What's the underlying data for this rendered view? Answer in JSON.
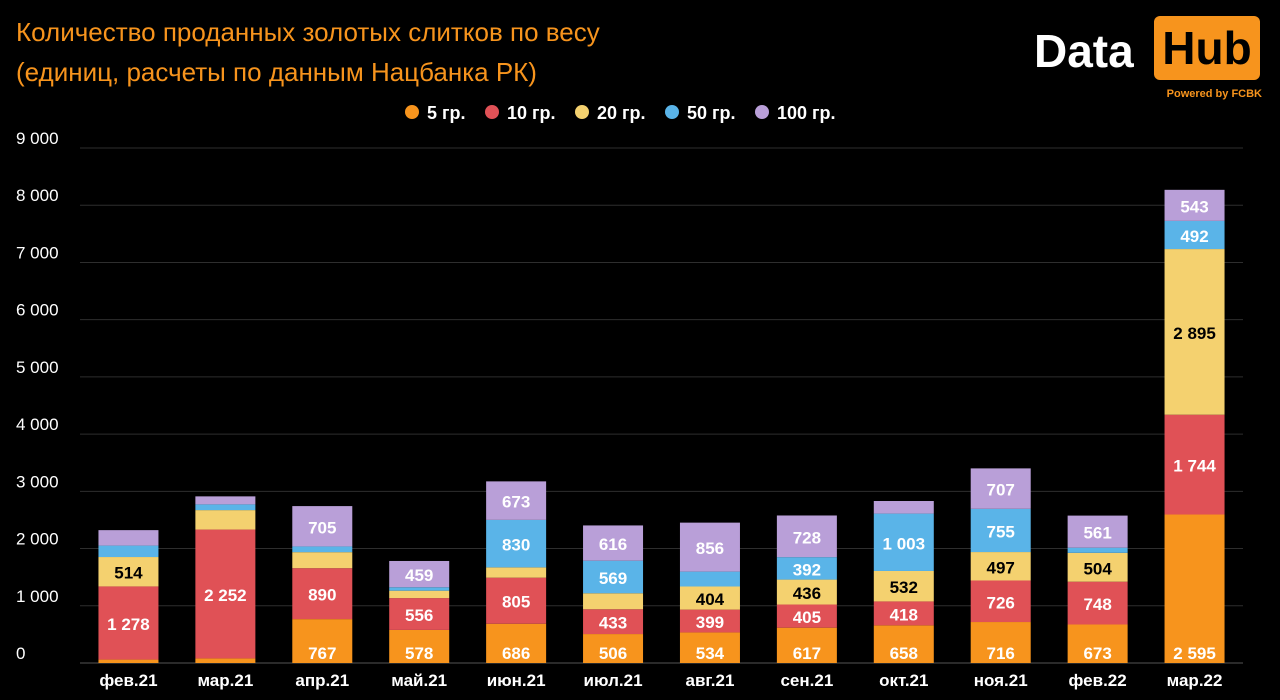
{
  "title": {
    "line1": "Количество проданных золотых слитков по весу",
    "line2": "(единиц, расчеты по данным Нацбанка РК)"
  },
  "logo": {
    "data_text": "Data",
    "hub_text": "Hub",
    "powered_text": "Powered by FCBK"
  },
  "chart_data": {
    "type": "bar",
    "stacked": true,
    "categories": [
      "фев.21",
      "мар.21",
      "апр.21",
      "май.21",
      "июн.21",
      "июл.21",
      "авг.21",
      "сен.21",
      "окт.21",
      "ноя.21",
      "фев.22",
      "мар.22"
    ],
    "series": [
      {
        "name": "5 гр.",
        "color": "#f7941d",
        "values": [
          60,
          80,
          767,
          578,
          686,
          506,
          534,
          617,
          658,
          716,
          673,
          2595
        ],
        "labels": [
          "",
          "",
          "767",
          "578",
          "686",
          "506",
          "534",
          "617",
          "658",
          "716",
          "673",
          "2 595"
        ]
      },
      {
        "name": "10 гр.",
        "color": "#e05156",
        "values": [
          1278,
          2252,
          890,
          556,
          805,
          433,
          399,
          405,
          418,
          726,
          748,
          1744
        ],
        "labels": [
          "1 278",
          "2 252",
          "890",
          "556",
          "805",
          "433",
          "399",
          "405",
          "418",
          "726",
          "748",
          "1 744"
        ]
      },
      {
        "name": "20 гр.",
        "color": "#f4d16f",
        "values": [
          514,
          340,
          280,
          130,
          180,
          280,
          404,
          436,
          532,
          497,
          504,
          2895
        ],
        "labels": [
          "514",
          "",
          "",
          "",
          "",
          "",
          "404",
          "436",
          "532",
          "497",
          "504",
          "2 895"
        ]
      },
      {
        "name": "50 гр.",
        "color": "#5ab4e8",
        "values": [
          200,
          100,
          100,
          60,
          830,
          569,
          260,
          392,
          1003,
          755,
          90,
          492
        ],
        "labels": [
          "",
          "",
          "",
          "",
          "830",
          "569",
          "",
          "392",
          "1 003",
          "755",
          "",
          "492"
        ]
      },
      {
        "name": "100 гр.",
        "color": "#b99fd8",
        "values": [
          270,
          140,
          705,
          459,
          673,
          616,
          856,
          728,
          220,
          707,
          561,
          543
        ],
        "labels": [
          "",
          "",
          "705",
          "459",
          "673",
          "616",
          "856",
          "728",
          "",
          "707",
          "561",
          "543"
        ]
      }
    ],
    "ylim": [
      0,
      9000
    ],
    "yticks": [
      0,
      1000,
      2000,
      3000,
      4000,
      5000,
      6000,
      7000,
      8000,
      9000
    ],
    "ytick_labels": [
      "0",
      "1 000",
      "2 000",
      "3 000",
      "4 000",
      "5 000",
      "6 000",
      "7 000",
      "8 000",
      "9 000"
    ],
    "grid": true,
    "legend": "top-center",
    "xlabel": "",
    "ylabel": ""
  }
}
